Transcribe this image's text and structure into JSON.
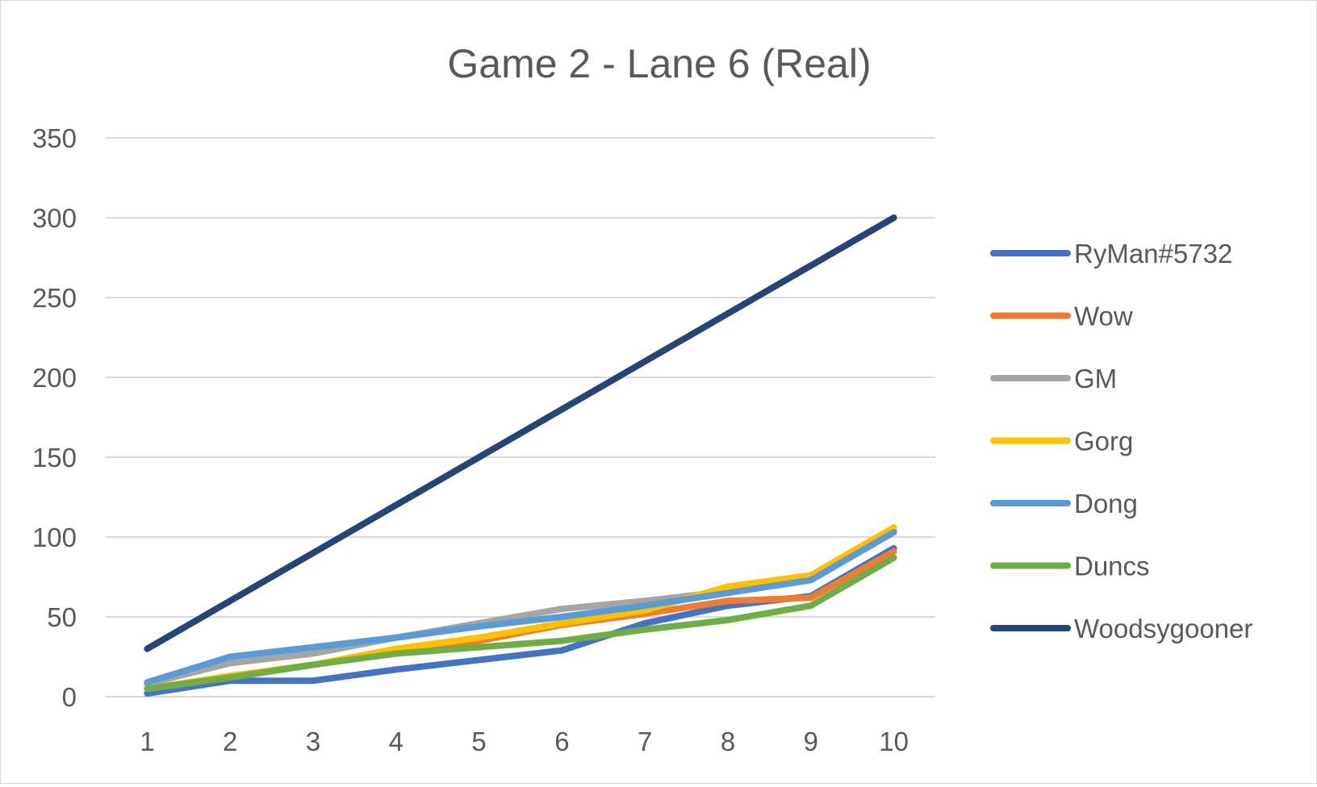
{
  "chart_data": {
    "type": "line",
    "title": "Game 2 - Lane 6 (Real)",
    "xlabel": "",
    "ylabel": "",
    "categories": [
      "1",
      "2",
      "3",
      "4",
      "5",
      "6",
      "7",
      "8",
      "9",
      "10"
    ],
    "ylim": [
      0,
      350
    ],
    "yticks": [
      0,
      50,
      100,
      150,
      200,
      250,
      300,
      350
    ],
    "grid": true,
    "legend_position": "right",
    "series": [
      {
        "name": "RyMan#5732",
        "color": "#4472C4",
        "values": [
          2,
          10,
          10,
          17,
          23,
          29,
          46,
          57,
          63,
          93
        ]
      },
      {
        "name": "Wow",
        "color": "#ED7D31",
        "values": [
          5,
          12,
          20,
          28,
          35,
          45,
          52,
          60,
          62,
          91
        ]
      },
      {
        "name": "GM",
        "color": "#A5A5A5",
        "values": [
          8,
          21,
          27,
          37,
          46,
          55,
          60,
          66,
          74,
          104
        ]
      },
      {
        "name": "Gorg",
        "color": "#FFC000",
        "values": [
          5,
          13,
          20,
          30,
          37,
          46,
          54,
          69,
          76,
          106
        ]
      },
      {
        "name": "Dong",
        "color": "#5B9BD5",
        "values": [
          9,
          25,
          31,
          37,
          44,
          50,
          57,
          65,
          73,
          103
        ]
      },
      {
        "name": "Duncs",
        "color": "#70AD47",
        "values": [
          5,
          12,
          20,
          27,
          31,
          35,
          42,
          48,
          57,
          87
        ]
      },
      {
        "name": "Woodsygooner",
        "color": "#264478",
        "values": [
          30,
          60,
          90,
          120,
          150,
          180,
          210,
          240,
          270,
          300
        ]
      }
    ]
  }
}
